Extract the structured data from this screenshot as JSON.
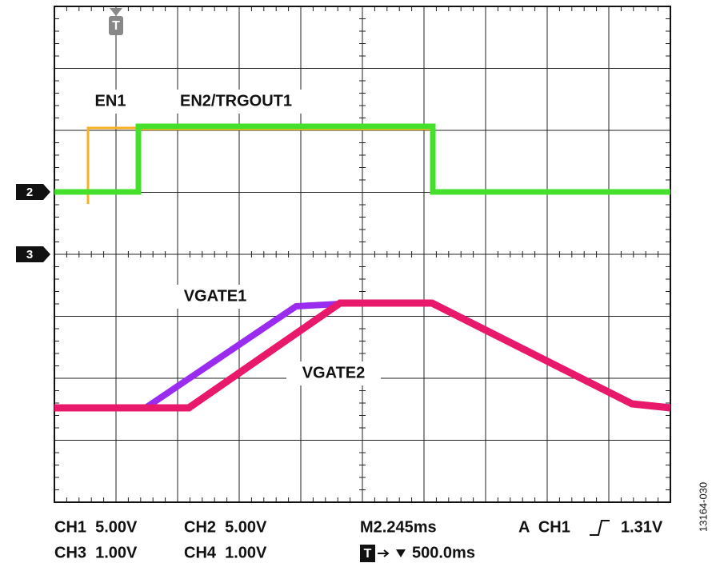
{
  "markers": {
    "trigger": "T",
    "channels": [
      "2",
      "3"
    ]
  },
  "trace_labels": [
    "EN1",
    "EN2/TRGOUT1",
    "VGATE1",
    "VGATE2"
  ],
  "status": {
    "row1": [
      "CH1  5.00V",
      "CH2  5.00V",
      "M2.245ms",
      "A  CH1",
      "1.31V"
    ],
    "row2": [
      "CH3  1.00V",
      "CH4  1.00V",
      "T",
      "500.0ms"
    ]
  },
  "figure_id": "13164-030"
}
